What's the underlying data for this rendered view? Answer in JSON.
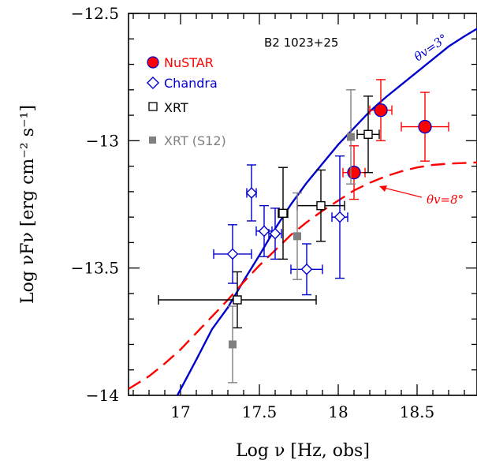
{
  "chart_data": {
    "type": "scatter",
    "title": "",
    "source_label": "B2 1023+25",
    "xlabel": "Log ν  [Hz, obs]",
    "ylabel": "Log νFν  [erg cm⁻² s⁻¹]",
    "xlim": [
      16.67,
      18.88
    ],
    "ylim": [
      -14.0,
      -12.5
    ],
    "xticks": [
      17.0,
      17.5,
      18.0,
      18.5
    ],
    "xtick_labels": [
      "17",
      "17.5",
      "18",
      "18.5"
    ],
    "yticks": [
      -14.0,
      -13.5,
      -13.0,
      -12.5
    ],
    "ytick_labels": [
      "−14",
      "−13.5",
      "−13",
      "−12.5"
    ],
    "grid": false,
    "legend_position": "top-left",
    "colors": {
      "nustar": "#ff0000",
      "chandra": "#0000cc",
      "xrt": "#000000",
      "xrt_s12": "#808080",
      "model_3deg": "#0000cc",
      "model_8deg": "#ff0000"
    },
    "series": [
      {
        "name": "NuSTAR",
        "marker": "circle",
        "points": [
          {
            "x": 18.1,
            "xerr": 0.07,
            "y": -13.125,
            "yerr": 0.105
          },
          {
            "x": 18.27,
            "xerr": 0.07,
            "y": -12.88,
            "yerr": 0.12
          },
          {
            "x": 18.55,
            "xerr": 0.15,
            "y": -12.945,
            "yerr": 0.135
          }
        ]
      },
      {
        "name": "Chandra",
        "marker": "diamond",
        "points": [
          {
            "x": 17.33,
            "xerr": 0.12,
            "y": -13.445,
            "yerr": 0.115
          },
          {
            "x": 17.45,
            "xerr": 0.03,
            "y": -13.205,
            "yerr": 0.11
          },
          {
            "x": 17.53,
            "xerr": 0.05,
            "y": -13.355,
            "yerr": 0.1
          },
          {
            "x": 17.6,
            "xerr": 0.04,
            "y": -13.365,
            "yerr": 0.1
          },
          {
            "x": 17.8,
            "xerr": 0.1,
            "y": -13.505,
            "yerr": 0.1
          },
          {
            "x": 18.01,
            "xerr": 0.05,
            "y": -13.3,
            "yerr": 0.24
          }
        ]
      },
      {
        "name": "XRT",
        "marker": "open-square",
        "points": [
          {
            "x": 17.36,
            "xerr": 0.5,
            "y": -13.625,
            "yerr": 0.11
          },
          {
            "x": 17.65,
            "xerr": 0.03,
            "y": -13.285,
            "yerr": 0.18
          },
          {
            "x": 17.89,
            "xerr": 0.15,
            "y": -13.255,
            "yerr": 0.14
          },
          {
            "x": 18.19,
            "xerr": 0.07,
            "y": -12.975,
            "yerr": 0.15
          }
        ]
      },
      {
        "name": "XRT (S12)",
        "marker": "filled-square",
        "points": [
          {
            "x": 17.33,
            "y": -13.8,
            "yerr": 0.15
          },
          {
            "x": 17.74,
            "y": -13.375,
            "yerr": 0.17
          },
          {
            "x": 18.08,
            "y": -12.985,
            "yerr": 0.185
          }
        ]
      }
    ],
    "models": [
      {
        "label": "θv=3°",
        "style": "solid",
        "points": [
          [
            16.98,
            -14.0
          ],
          [
            17.1,
            -13.86
          ],
          [
            17.2,
            -13.74
          ],
          [
            17.3,
            -13.655
          ],
          [
            17.4,
            -13.55
          ],
          [
            17.5,
            -13.45
          ],
          [
            17.6,
            -13.345
          ],
          [
            17.7,
            -13.25
          ],
          [
            17.8,
            -13.165
          ],
          [
            17.9,
            -13.09
          ],
          [
            18.0,
            -13.015
          ],
          [
            18.1,
            -12.95
          ],
          [
            18.2,
            -12.885
          ],
          [
            18.3,
            -12.83
          ],
          [
            18.4,
            -12.78
          ],
          [
            18.5,
            -12.73
          ],
          [
            18.6,
            -12.68
          ],
          [
            18.7,
            -12.63
          ],
          [
            18.8,
            -12.59
          ],
          [
            18.88,
            -12.56
          ]
        ]
      },
      {
        "label": "θv=8°",
        "style": "dashed",
        "points": [
          [
            16.67,
            -13.975
          ],
          [
            16.8,
            -13.925
          ],
          [
            16.9,
            -13.875
          ],
          [
            17.0,
            -13.82
          ],
          [
            17.1,
            -13.755
          ],
          [
            17.2,
            -13.69
          ],
          [
            17.3,
            -13.625
          ],
          [
            17.4,
            -13.555
          ],
          [
            17.5,
            -13.49
          ],
          [
            17.6,
            -13.43
          ],
          [
            17.7,
            -13.37
          ],
          [
            17.8,
            -13.32
          ],
          [
            17.9,
            -13.275
          ],
          [
            18.0,
            -13.235
          ],
          [
            18.1,
            -13.195
          ],
          [
            18.2,
            -13.165
          ],
          [
            18.3,
            -13.14
          ],
          [
            18.4,
            -13.12
          ],
          [
            18.5,
            -13.105
          ],
          [
            18.6,
            -13.095
          ],
          [
            18.7,
            -13.09
          ],
          [
            18.88,
            -13.085
          ]
        ]
      }
    ]
  }
}
